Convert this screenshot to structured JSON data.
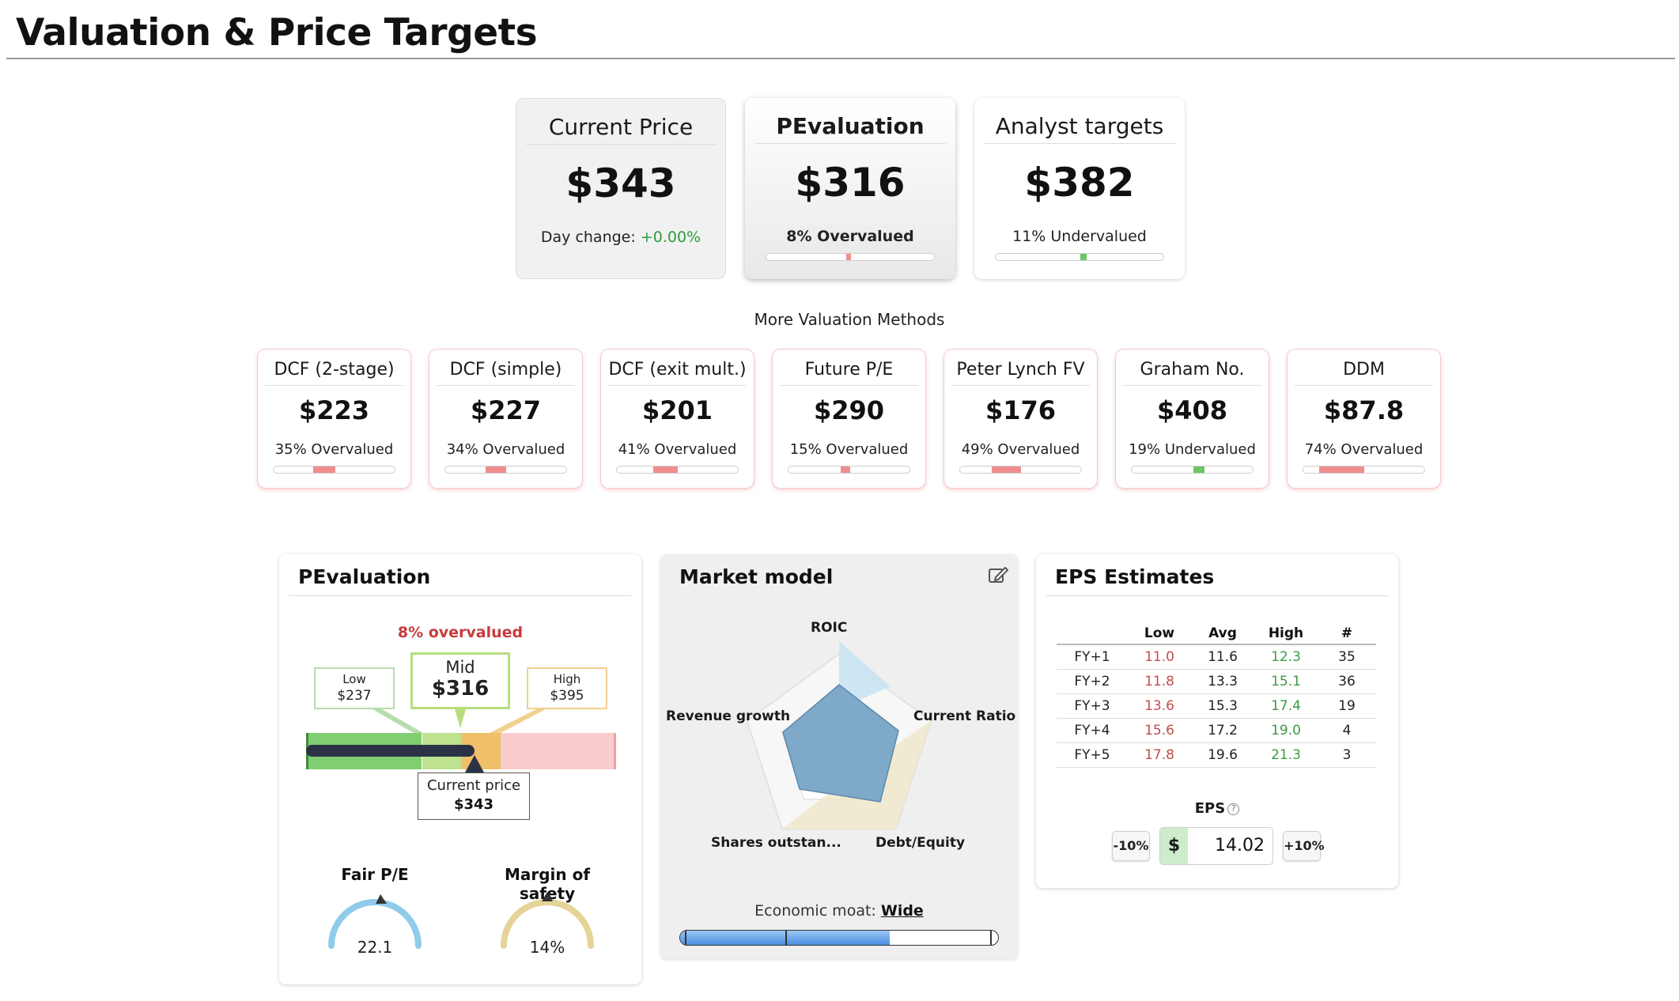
{
  "page_title": "Valuation & Price Targets",
  "top_cards": {
    "current_price": {
      "title": "Current Price",
      "value": "$343",
      "sub_label": "Day change: ",
      "sub_value": "+0.00%"
    },
    "pevaluation": {
      "title": "PEvaluation",
      "value": "$316",
      "sub": "8% Overvalued",
      "meter_fraction": 0.08,
      "meter_color": "#f08e8e"
    },
    "analyst": {
      "title": "Analyst targets",
      "value": "$382",
      "sub": "11% Undervalued",
      "meter_fraction": 0.11,
      "meter_color": "#6cc466"
    }
  },
  "more_methods_title": "More Valuation Methods",
  "methods": [
    {
      "title": "DCF (2-stage)",
      "value": "$223",
      "sub": "35% Overvalued",
      "fraction": 0.35,
      "type": "over"
    },
    {
      "title": "DCF (simple)",
      "value": "$227",
      "sub": "34% Overvalued",
      "fraction": 0.34,
      "type": "over"
    },
    {
      "title": "DCF (exit mult.)",
      "value": "$201",
      "sub": "41% Overvalued",
      "fraction": 0.41,
      "type": "over"
    },
    {
      "title": "Future P/E",
      "value": "$290",
      "sub": "15% Overvalued",
      "fraction": 0.15,
      "type": "over"
    },
    {
      "title": "Peter Lynch FV",
      "value": "$176",
      "sub": "49% Overvalued",
      "fraction": 0.49,
      "type": "over"
    },
    {
      "title": "Graham No.",
      "value": "$408",
      "sub": "19% Undervalued",
      "fraction": 0.19,
      "type": "under"
    },
    {
      "title": "DDM",
      "value": "$87.8",
      "sub": "74% Overvalued",
      "fraction": 0.74,
      "type": "over"
    }
  ],
  "pevaluation_panel": {
    "title": "PEvaluation",
    "status": "8% overvalued",
    "low": {
      "label": "Low",
      "value": "$237"
    },
    "mid": {
      "label": "Mid",
      "value": "$316"
    },
    "high": {
      "label": "High",
      "value": "$395"
    },
    "current": {
      "label": "Current price",
      "value": "$343"
    },
    "fair_pe": {
      "label": "Fair P/E",
      "value": "22.1"
    },
    "margin": {
      "label": "Margin of safety",
      "value": "14%"
    }
  },
  "market_model": {
    "title": "Market model",
    "axes": [
      "ROIC",
      "Current Ratio",
      "Debt/Equity",
      "Shares outstan...",
      "Revenue growth"
    ],
    "moat_label": "Economic moat: ",
    "moat_value": "Wide",
    "moat_fraction": 0.66
  },
  "eps_estimates": {
    "title": "EPS Estimates",
    "columns": [
      "",
      "Low",
      "Avg",
      "High",
      "#"
    ],
    "rows": [
      [
        "FY+1",
        "11.0",
        "11.6",
        "12.3",
        "35"
      ],
      [
        "FY+2",
        "11.8",
        "13.3",
        "15.1",
        "36"
      ],
      [
        "FY+3",
        "13.6",
        "15.3",
        "17.4",
        "19"
      ],
      [
        "FY+4",
        "15.6",
        "17.2",
        "19.0",
        "4"
      ],
      [
        "FY+5",
        "17.8",
        "19.6",
        "21.3",
        "3"
      ]
    ],
    "eps_label": "EPS",
    "minus_label": "-10%",
    "plus_label": "+10%",
    "currency": "$",
    "eps_value": "14.02"
  },
  "colors": {
    "over": "#f08e8e",
    "under": "#6cc466",
    "accent_red": "#c83b3b",
    "accent_green": "#2e9b3a"
  }
}
